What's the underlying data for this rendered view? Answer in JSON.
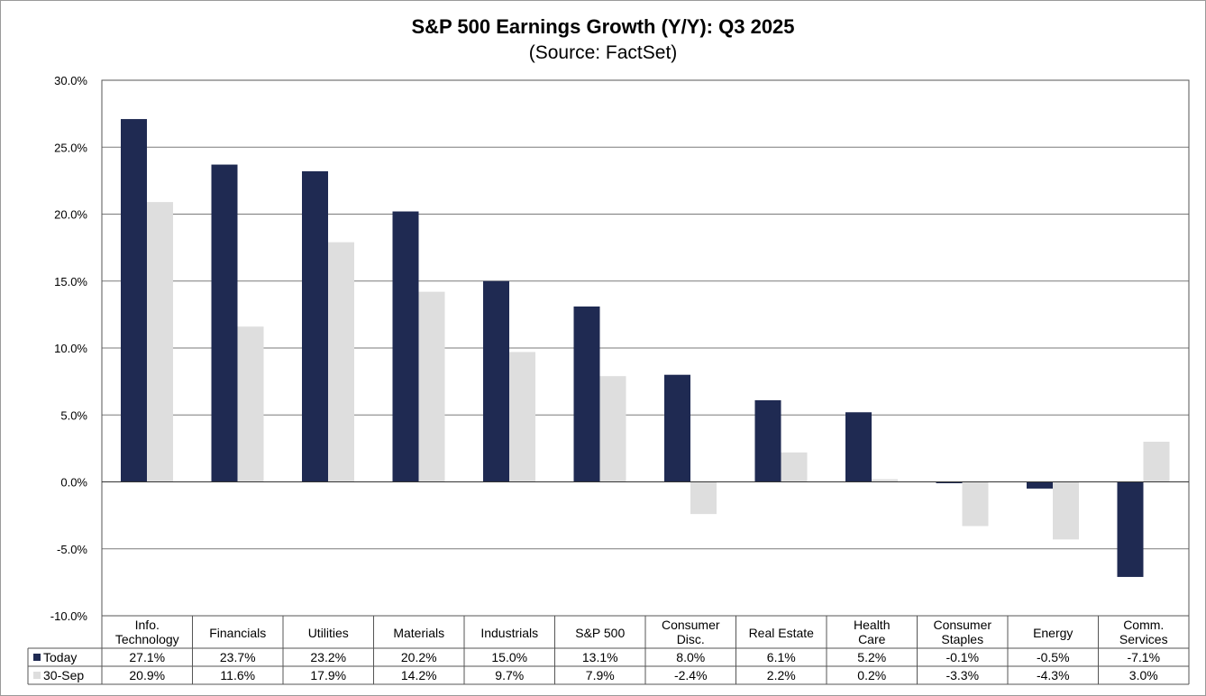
{
  "chart_data": {
    "type": "bar",
    "title": "S&P 500 Earnings Growth (Y/Y): Q3 2025",
    "subtitle": "(Source: FactSet)",
    "categories": [
      "Info. Technology",
      "Financials",
      "Utilities",
      "Materials",
      "Industrials",
      "S&P 500",
      "Consumer Disc.",
      "Real Estate",
      "Health Care",
      "Consumer Staples",
      "Energy",
      "Comm. Services"
    ],
    "category_lines": [
      [
        "Info.",
        "Technology"
      ],
      [
        "Financials"
      ],
      [
        "Utilities"
      ],
      [
        "Materials"
      ],
      [
        "Industrials"
      ],
      [
        "S&P 500"
      ],
      [
        "Consumer",
        "Disc."
      ],
      [
        "Real Estate"
      ],
      [
        "Health",
        "Care"
      ],
      [
        "Consumer",
        "Staples"
      ],
      [
        "Energy"
      ],
      [
        "Comm.",
        "Services"
      ]
    ],
    "series": [
      {
        "name": "Today",
        "color": "#1f2a52",
        "values": [
          27.1,
          23.7,
          23.2,
          20.2,
          15.0,
          13.1,
          8.0,
          6.1,
          5.2,
          -0.1,
          -0.5,
          -7.1
        ],
        "labels": [
          "27.1%",
          "23.7%",
          "23.2%",
          "20.2%",
          "15.0%",
          "13.1%",
          "8.0%",
          "6.1%",
          "5.2%",
          "-0.1%",
          "-0.5%",
          "-7.1%"
        ]
      },
      {
        "name": "30-Sep",
        "color": "#dedede",
        "values": [
          20.9,
          11.6,
          17.9,
          14.2,
          9.7,
          7.9,
          -2.4,
          2.2,
          0.2,
          -3.3,
          -4.3,
          3.0
        ],
        "labels": [
          "20.9%",
          "11.6%",
          "17.9%",
          "14.2%",
          "9.7%",
          "7.9%",
          "-2.4%",
          "2.2%",
          "0.2%",
          "-3.3%",
          "-4.3%",
          "3.0%"
        ]
      }
    ],
    "ylim": [
      -10,
      30
    ],
    "yticks": [
      30,
      25,
      20,
      15,
      10,
      5,
      0,
      -5,
      -10
    ],
    "ytick_labels": [
      "30.0%",
      "25.0%",
      "20.0%",
      "15.0%",
      "10.0%",
      "5.0%",
      "0.0%",
      "-5.0%",
      "-10.0%"
    ],
    "grid": true,
    "legend_placement": "data-table-rows",
    "xlabel": "",
    "ylabel": ""
  }
}
